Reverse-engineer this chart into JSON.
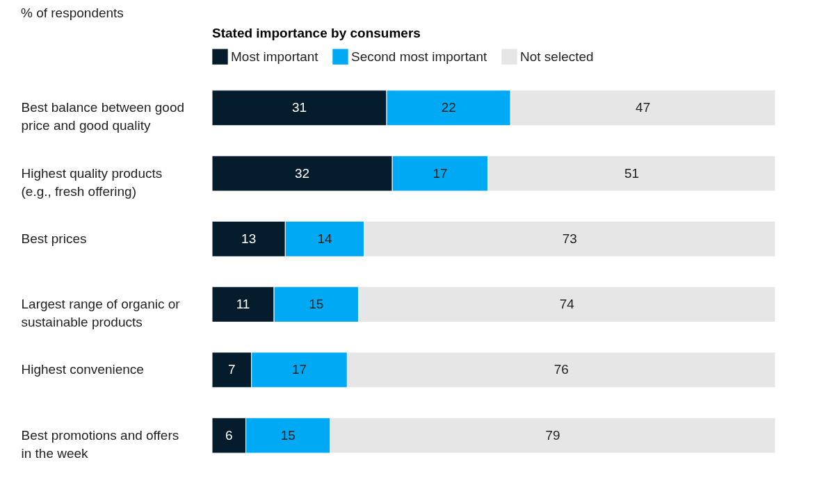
{
  "chart_data": {
    "type": "bar",
    "orientation": "horizontal",
    "stacked": true,
    "subtitle": "% of respondents",
    "legend_title": "Stated importance by consumers",
    "legend": "top",
    "data_labels": true,
    "tick_labels": "y",
    "xlim": [
      0,
      100
    ],
    "categories": [
      "Best balance between good price and good quality",
      "Highest quality products (e.g., fresh offering)",
      "Best prices",
      "Largest range of organic or sustainable products",
      "Highest convenience",
      "Best promotions and offers in the week"
    ],
    "series": [
      {
        "name": "Most important",
        "color": "#041c2c",
        "values": [
          31,
          32,
          13,
          11,
          7,
          6
        ]
      },
      {
        "name": "Second most important",
        "color": "#00a9f4",
        "values": [
          22,
          17,
          14,
          15,
          17,
          15
        ]
      },
      {
        "name": "Not selected",
        "color": "#e6e6e6",
        "values": [
          47,
          51,
          73,
          74,
          76,
          79
        ]
      }
    ]
  }
}
